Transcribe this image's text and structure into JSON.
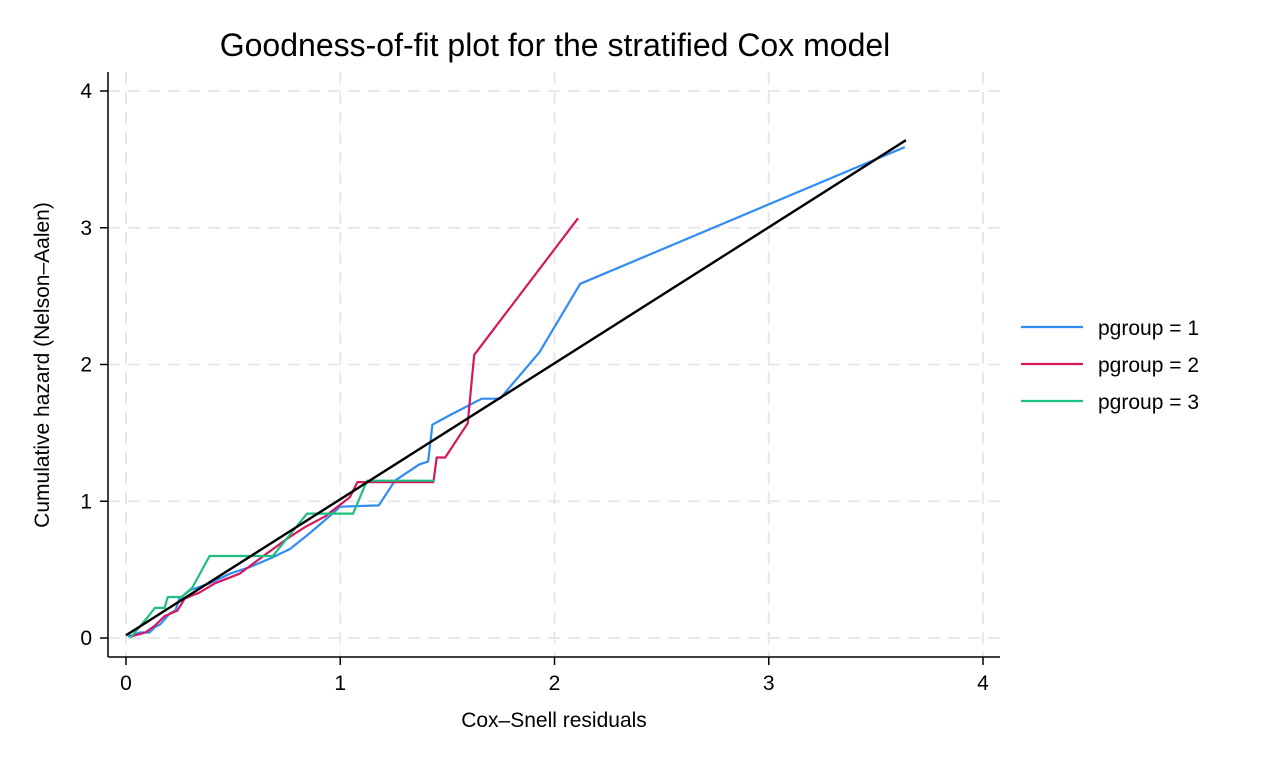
{
  "chart_data": {
    "type": "line",
    "title": "Goodness-of-fit plot for the stratified Cox model",
    "xlabel": "Cox–Snell residuals",
    "ylabel": "Cumulative hazard (Nelson–Aalen)",
    "xlim": [
      0,
      4
    ],
    "ylim": [
      0,
      4
    ],
    "xticks": [
      "0",
      "1",
      "2",
      "3",
      "4"
    ],
    "yticks": [
      "0",
      "1",
      "2",
      "3",
      "4"
    ],
    "grid": true,
    "legend_position": "right",
    "series": [
      {
        "name": "pgroup = 1",
        "color": "#2f8cf5",
        "points": [
          [
            0.01,
            0.01
          ],
          [
            0.065,
            0.04
          ],
          [
            0.11,
            0.04
          ],
          [
            0.135,
            0.08
          ],
          [
            0.16,
            0.1
          ],
          [
            0.205,
            0.18
          ],
          [
            0.23,
            0.2
          ],
          [
            0.25,
            0.29
          ],
          [
            0.3,
            0.35
          ],
          [
            0.39,
            0.4
          ],
          [
            0.485,
            0.47
          ],
          [
            0.58,
            0.52
          ],
          [
            0.67,
            0.58
          ],
          [
            0.765,
            0.65
          ],
          [
            0.86,
            0.77
          ],
          [
            0.905,
            0.83
          ],
          [
            1.0,
            0.96
          ],
          [
            1.18,
            0.97
          ],
          [
            1.255,
            1.15
          ],
          [
            1.37,
            1.27
          ],
          [
            1.41,
            1.29
          ],
          [
            1.43,
            1.56
          ],
          [
            1.5,
            1.62
          ],
          [
            1.66,
            1.75
          ],
          [
            1.745,
            1.75
          ],
          [
            1.93,
            2.09
          ],
          [
            2.12,
            2.59
          ],
          [
            3.635,
            3.59
          ]
        ]
      },
      {
        "name": "pgroup = 2",
        "color": "#d6175e",
        "points": [
          [
            0.02,
            0.01
          ],
          [
            0.09,
            0.04
          ],
          [
            0.135,
            0.09
          ],
          [
            0.18,
            0.16
          ],
          [
            0.24,
            0.2
          ],
          [
            0.275,
            0.29
          ],
          [
            0.34,
            0.33
          ],
          [
            0.415,
            0.4
          ],
          [
            0.53,
            0.47
          ],
          [
            0.65,
            0.61
          ],
          [
            0.765,
            0.74
          ],
          [
            0.835,
            0.81
          ],
          [
            0.93,
            0.89
          ],
          [
            1.045,
            1.03
          ],
          [
            1.08,
            1.14
          ],
          [
            1.435,
            1.14
          ],
          [
            1.45,
            1.32
          ],
          [
            1.49,
            1.32
          ],
          [
            1.595,
            1.57
          ],
          [
            1.625,
            2.07
          ],
          [
            2.11,
            3.07
          ]
        ]
      },
      {
        "name": "pgroup = 3",
        "color": "#1fbf7f",
        "points": [
          [
            0.02,
            0.0
          ],
          [
            0.1,
            0.15
          ],
          [
            0.135,
            0.22
          ],
          [
            0.18,
            0.22
          ],
          [
            0.195,
            0.3
          ],
          [
            0.26,
            0.3
          ],
          [
            0.31,
            0.37
          ],
          [
            0.39,
            0.6
          ],
          [
            0.685,
            0.6
          ],
          [
            0.845,
            0.91
          ],
          [
            1.06,
            0.91
          ],
          [
            1.125,
            1.15
          ],
          [
            1.44,
            1.15
          ]
        ]
      },
      {
        "color": "#000000",
        "points": [
          [
            0.0,
            0.02
          ],
          [
            3.64,
            3.64
          ]
        ]
      }
    ]
  }
}
